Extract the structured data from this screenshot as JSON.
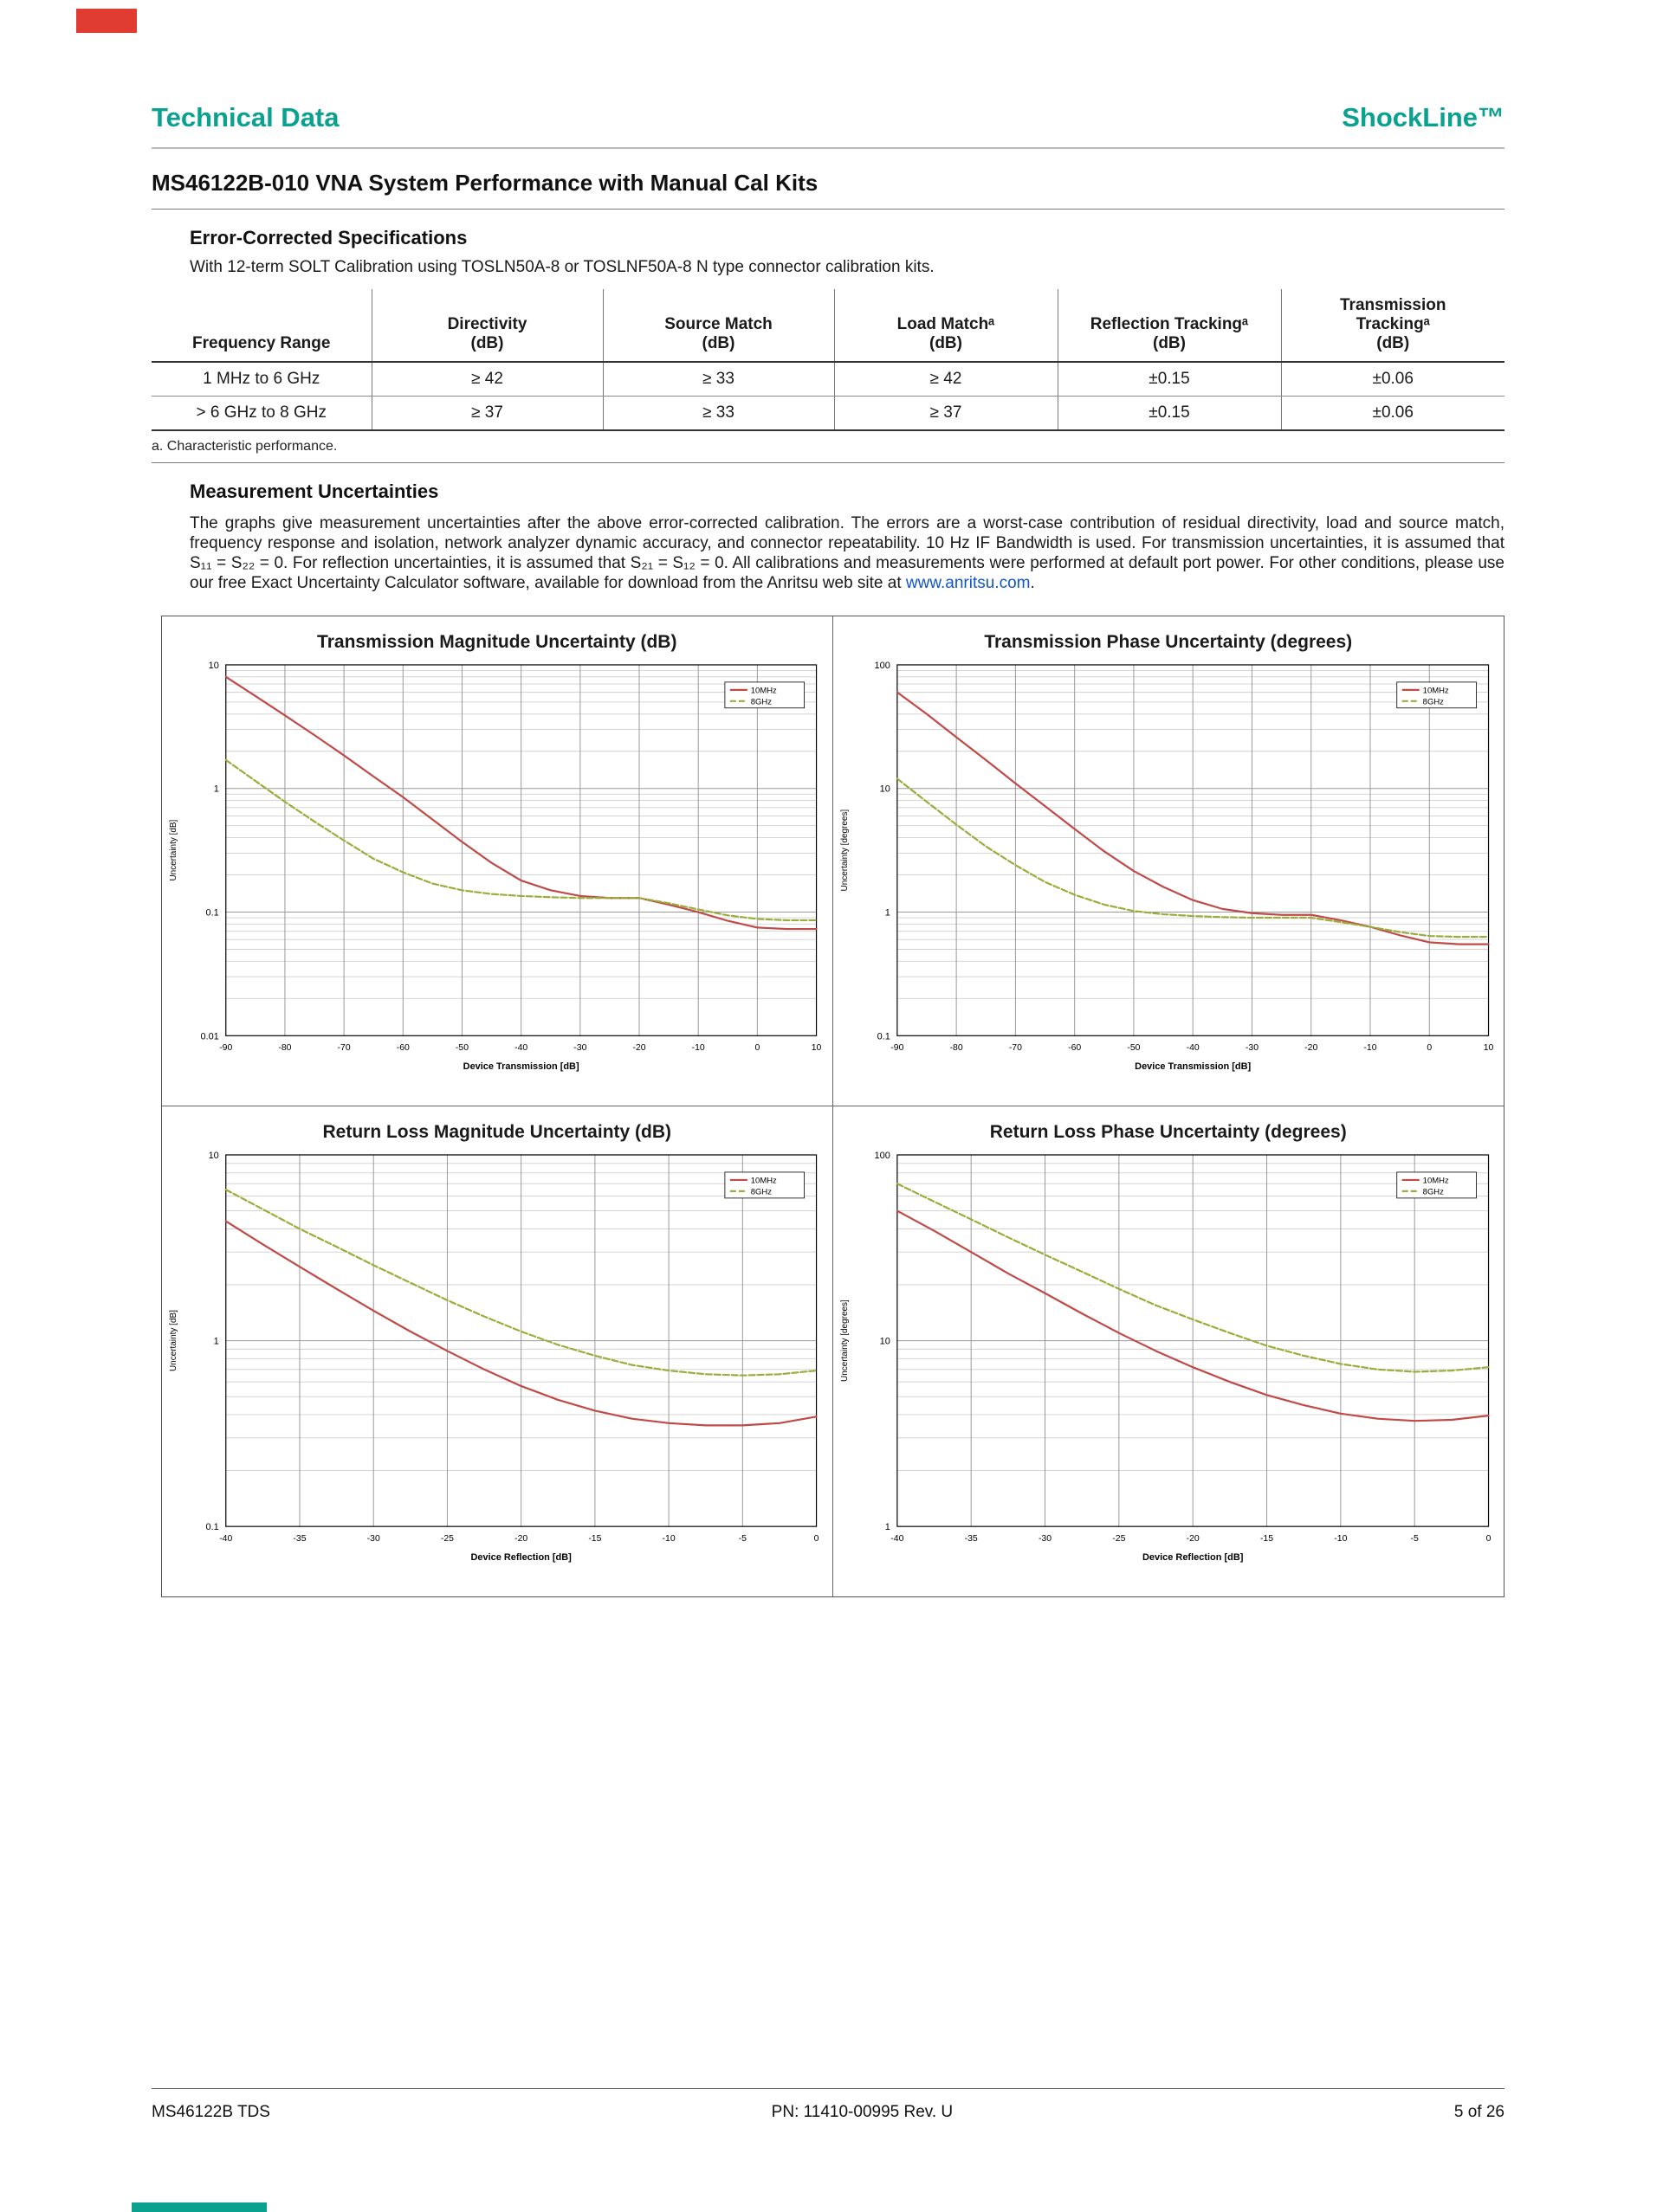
{
  "colors": {
    "teal": "#0aa18f",
    "link": "#1155cc",
    "artifact-red": "#e03c31",
    "artifact-teal": "#0aa18f"
  },
  "header": {
    "left": "Technical Data",
    "right": "ShockLine™"
  },
  "title": "MS46122B-010 VNA System Performance with Manual Cal Kits",
  "specs": {
    "heading": "Error-Corrected Specifications",
    "intro": "With 12-term SOLT Calibration using TOSLN50A-8 or TOSLNF50A-8 N type connector calibration kits.",
    "table": {
      "headers": [
        {
          "label": "Frequency Range",
          "unit": ""
        },
        {
          "label": "Directivity",
          "unit": "(dB)"
        },
        {
          "label": "Source Match",
          "unit": "(dB)"
        },
        {
          "label": "Load Matchᵃ",
          "unit": "(dB)"
        },
        {
          "label": "Reflection Trackingᵃ",
          "unit": "(dB)"
        },
        {
          "label": "Transmission\nTrackingᵃ",
          "unit": "(dB)"
        }
      ],
      "rows": [
        [
          "1 MHz to 6 GHz",
          "≥ 42",
          "≥ 33",
          "≥ 42",
          "±0.15",
          "±0.06"
        ],
        [
          "> 6 GHz to 8 GHz",
          "≥ 37",
          "≥ 33",
          "≥ 37",
          "±0.15",
          "±0.06"
        ]
      ]
    },
    "footnote": "a.  Characteristic performance."
  },
  "uncertainties": {
    "heading": "Measurement Uncertainties",
    "body": "The graphs give measurement uncertainties after the above error-corrected calibration. The errors are a worst-case contribution of residual directivity, load and source match, frequency response and isolation, network analyzer dynamic accuracy, and connector repeatability. 10 Hz IF Bandwidth is used. For transmission uncertainties, it is assumed that S₁₁ = S₂₂ = 0. For reflection uncertainties, it is assumed that S₂₁ = S₁₂ = 0. All calibrations and measurements were performed at default port power. For other conditions, please use our free Exact Uncertainty Calculator software, available for download from the Anritsu web site at ",
    "link": "www.anritsu.com",
    "after_link": "."
  },
  "chart_data": [
    {
      "type": "line",
      "title": "Transmission Magnitude Uncertainty (dB)",
      "xlabel": "Device Transmission [dB]",
      "ylabel": "Uncertainty  [dB]",
      "xlim": [
        -90,
        10
      ],
      "xtick_step": 10,
      "yscale": "log",
      "ylim": [
        0.01,
        10
      ],
      "legend_position": "top-right",
      "series": [
        {
          "name": "10MHz",
          "color": "#bf4a47",
          "dash": null,
          "x": [
            -90,
            -85,
            -80,
            -75,
            -70,
            -65,
            -60,
            -55,
            -50,
            -45,
            -40,
            -35,
            -30,
            -25,
            -20,
            -15,
            -10,
            -5,
            0,
            5,
            10
          ],
          "y": [
            8.0,
            5.6,
            3.9,
            2.7,
            1.85,
            1.25,
            0.85,
            0.56,
            0.37,
            0.25,
            0.18,
            0.15,
            0.135,
            0.13,
            0.13,
            0.115,
            0.1,
            0.085,
            0.075,
            0.073,
            0.073
          ]
        },
        {
          "name": "8GHz",
          "color": "#9aad3b",
          "dash": "7 3",
          "x": [
            -90,
            -85,
            -80,
            -75,
            -70,
            -65,
            -60,
            -55,
            -50,
            -45,
            -40,
            -35,
            -30,
            -25,
            -20,
            -15,
            -10,
            -5,
            0,
            5,
            10
          ],
          "y": [
            1.7,
            1.15,
            0.78,
            0.54,
            0.38,
            0.27,
            0.21,
            0.17,
            0.15,
            0.14,
            0.135,
            0.132,
            0.13,
            0.13,
            0.13,
            0.118,
            0.105,
            0.094,
            0.088,
            0.086,
            0.086
          ]
        }
      ]
    },
    {
      "type": "line",
      "title": "Transmission Phase Uncertainty (degrees)",
      "xlabel": "Device Transmission [dB]",
      "ylabel": "Uncertainty [degrees]",
      "xlim": [
        -90,
        10
      ],
      "xtick_step": 10,
      "yscale": "log",
      "ylim": [
        0.1,
        100
      ],
      "legend_position": "top-right",
      "series": [
        {
          "name": "10MHz",
          "color": "#bf4a47",
          "dash": null,
          "x": [
            -90,
            -85,
            -80,
            -75,
            -70,
            -65,
            -60,
            -55,
            -50,
            -45,
            -40,
            -35,
            -30,
            -25,
            -20,
            -15,
            -10,
            -5,
            0,
            5,
            10
          ],
          "y": [
            60,
            40,
            26,
            17,
            11,
            7.2,
            4.7,
            3.1,
            2.15,
            1.6,
            1.25,
            1.06,
            0.98,
            0.95,
            0.95,
            0.86,
            0.76,
            0.65,
            0.57,
            0.55,
            0.55
          ]
        },
        {
          "name": "8GHz",
          "color": "#9aad3b",
          "dash": "7 3",
          "x": [
            -90,
            -85,
            -80,
            -75,
            -70,
            -65,
            -60,
            -55,
            -50,
            -45,
            -40,
            -35,
            -30,
            -25,
            -20,
            -15,
            -10,
            -5,
            0,
            5,
            10
          ],
          "y": [
            12,
            7.8,
            5.1,
            3.4,
            2.4,
            1.75,
            1.38,
            1.15,
            1.02,
            0.96,
            0.93,
            0.91,
            0.9,
            0.9,
            0.9,
            0.83,
            0.76,
            0.69,
            0.64,
            0.63,
            0.63
          ]
        }
      ]
    },
    {
      "type": "line",
      "title": "Return Loss Magnitude Uncertainty (dB)",
      "xlabel": "Device Reflection [dB]",
      "ylabel": "Uncertainty [dB]",
      "xlim": [
        -40,
        0
      ],
      "xtick_step": 5,
      "yscale": "log",
      "ylim": [
        0.1,
        10
      ],
      "legend_position": "top-right",
      "series": [
        {
          "name": "10MHz",
          "color": "#bf4a47",
          "dash": null,
          "x": [
            -40,
            -37.5,
            -35,
            -32.5,
            -30,
            -27.5,
            -25,
            -22.5,
            -20,
            -17.5,
            -15,
            -12.5,
            -10,
            -7.5,
            -5,
            -2.5,
            0
          ],
          "y": [
            4.4,
            3.3,
            2.5,
            1.9,
            1.45,
            1.12,
            0.88,
            0.7,
            0.57,
            0.48,
            0.42,
            0.38,
            0.36,
            0.35,
            0.35,
            0.36,
            0.39
          ]
        },
        {
          "name": "8GHz",
          "color": "#9aad3b",
          "dash": "7 3",
          "x": [
            -40,
            -37.5,
            -35,
            -32.5,
            -30,
            -27.5,
            -25,
            -22.5,
            -20,
            -17.5,
            -15,
            -12.5,
            -10,
            -7.5,
            -5,
            -2.5,
            0
          ],
          "y": [
            6.5,
            5.1,
            4.0,
            3.2,
            2.55,
            2.05,
            1.65,
            1.35,
            1.12,
            0.95,
            0.83,
            0.74,
            0.69,
            0.66,
            0.65,
            0.66,
            0.69
          ]
        }
      ]
    },
    {
      "type": "line",
      "title": "Return Loss Phase Uncertainty (degrees)",
      "xlabel": "Device Reflection [dB]",
      "ylabel": "Uncertainty [degrees]",
      "xlim": [
        -40,
        0
      ],
      "xtick_step": 5,
      "yscale": "log",
      "ylim": [
        1,
        100
      ],
      "legend_position": "top-right",
      "series": [
        {
          "name": "10MHz",
          "color": "#bf4a47",
          "dash": null,
          "x": [
            -40,
            -37.5,
            -35,
            -32.5,
            -30,
            -27.5,
            -25,
            -22.5,
            -20,
            -17.5,
            -15,
            -12.5,
            -10,
            -7.5,
            -5,
            -2.5,
            0
          ],
          "y": [
            50,
            39,
            30,
            23,
            18,
            14,
            11,
            8.8,
            7.2,
            6.0,
            5.1,
            4.5,
            4.05,
            3.8,
            3.7,
            3.75,
            3.95
          ]
        },
        {
          "name": "8GHz",
          "color": "#9aad3b",
          "dash": "7 3",
          "x": [
            -40,
            -37.5,
            -35,
            -32.5,
            -30,
            -27.5,
            -25,
            -22.5,
            -20,
            -17.5,
            -15,
            -12.5,
            -10,
            -7.5,
            -5,
            -2.5,
            0
          ],
          "y": [
            70,
            56,
            45,
            36,
            29,
            23.5,
            19,
            15.5,
            13,
            11,
            9.4,
            8.3,
            7.5,
            7.0,
            6.8,
            6.9,
            7.2
          ]
        }
      ]
    }
  ],
  "footer": {
    "left": "MS46122B TDS",
    "center": "PN: 11410-00995 Rev. U",
    "right": "5 of 26"
  }
}
